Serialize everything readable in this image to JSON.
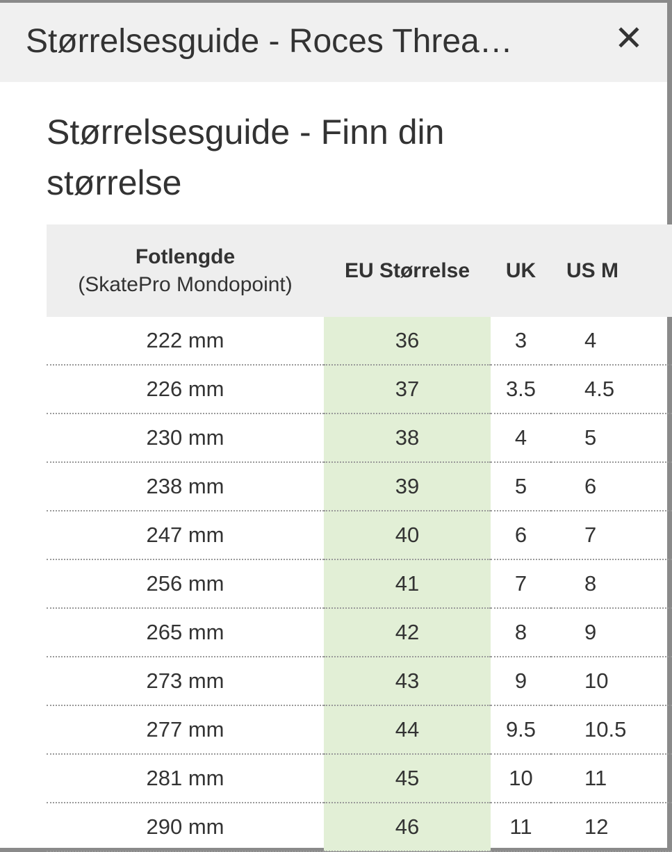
{
  "header": {
    "title": "Størrelsesguide - Roces Threa…",
    "close": "✕"
  },
  "content": {
    "heading": "Størrelsesguide - Finn din størrelse",
    "table": {
      "columns": [
        {
          "title": "Fotlengde",
          "subtitle": "(SkatePro Mondopoint)"
        },
        {
          "title": "EU Størrelse"
        },
        {
          "title": "UK"
        },
        {
          "title": "US M"
        }
      ],
      "rows": [
        [
          "222 mm",
          "36",
          "3",
          "4"
        ],
        [
          "226 mm",
          "37",
          "3.5",
          "4.5"
        ],
        [
          "230 mm",
          "38",
          "4",
          "5"
        ],
        [
          "238 mm",
          "39",
          "5",
          "6"
        ],
        [
          "247 mm",
          "40",
          "6",
          "7"
        ],
        [
          "256 mm",
          "41",
          "7",
          "8"
        ],
        [
          "265 mm",
          "42",
          "8",
          "9"
        ],
        [
          "273 mm",
          "43",
          "9",
          "10"
        ],
        [
          "277 mm",
          "44",
          "9.5",
          "10.5"
        ],
        [
          "281 mm",
          "45",
          "10",
          "11"
        ],
        [
          "290 mm",
          "46",
          "11",
          "12"
        ]
      ]
    }
  }
}
